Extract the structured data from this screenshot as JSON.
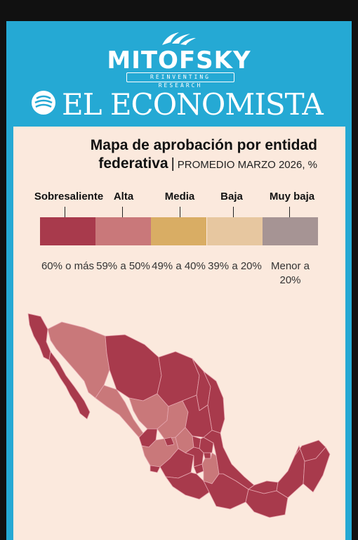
{
  "header": {
    "brand1": "MITOFSKY",
    "brand1_tagline": "REINVENTING RESEARCH",
    "brand2": "EL ECONOMISTA"
  },
  "title": {
    "line1": "Mapa de aprobación por entidad",
    "line2": "federativa",
    "separator": "|",
    "subtitle": "PROMEDIO MARZO 2026, %"
  },
  "legend": [
    {
      "label": "Sobresaliente",
      "range": "60% o más",
      "color": "#a83a4c"
    },
    {
      "label": "Alta",
      "range": "59% a 50%",
      "color": "#c9787a"
    },
    {
      "label": "Media",
      "range": "49% a 40%",
      "color": "#d9ad64"
    },
    {
      "label": "Baja",
      "range": "39% a 20%",
      "color": "#e7c7a0"
    },
    {
      "label": "Muy baja",
      "range": "Menor a 20%",
      "color": "#a69494"
    }
  ],
  "map": {
    "base_color": "#a83a4c",
    "alta_color": "#c9787a",
    "border_color": "#e6a7b0"
  }
}
